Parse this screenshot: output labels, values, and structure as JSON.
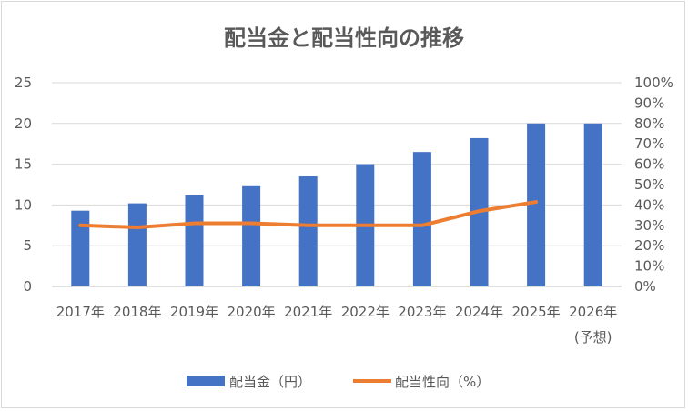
{
  "chart_data": {
    "type": "bar",
    "title": "配当金と配当性向の推移",
    "categories": [
      [
        "2017年"
      ],
      [
        "2018年"
      ],
      [
        "2019年"
      ],
      [
        "2020年"
      ],
      [
        "2021年"
      ],
      [
        "2022年"
      ],
      [
        "2023年"
      ],
      [
        "2024年"
      ],
      [
        "2025年"
      ],
      [
        "2026年",
        "(予想)"
      ]
    ],
    "series": [
      {
        "name": "配当金（円）",
        "type": "bar",
        "axis": "left",
        "color": "#4472C4",
        "values": [
          9.3,
          10.2,
          11.2,
          12.3,
          13.5,
          15.0,
          16.5,
          18.2,
          20.0,
          20.0
        ]
      },
      {
        "name": "配当性向（%）",
        "type": "line",
        "axis": "right",
        "color": "#ED7D31",
        "values": [
          30,
          29,
          31,
          31,
          30,
          30,
          30,
          37,
          41.5,
          null
        ]
      }
    ],
    "y_left": {
      "min": 0,
      "max": 25,
      "ticks": [
        "0",
        "5",
        "10",
        "15",
        "20",
        "25"
      ]
    },
    "y_right": {
      "min": 0,
      "max": 100,
      "ticks": [
        "0%",
        "10%",
        "20%",
        "30%",
        "40%",
        "50%",
        "60%",
        "70%",
        "80%",
        "90%",
        "100%"
      ]
    },
    "grid": "horizontal",
    "legend_position": "bottom"
  }
}
